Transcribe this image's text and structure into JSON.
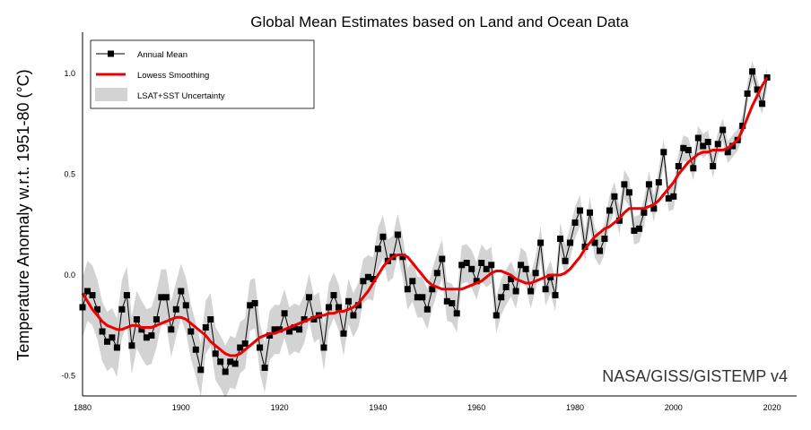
{
  "chart_data": {
    "type": "line",
    "title": "Global Mean Estimates based on Land and Ocean Data",
    "xlabel": "",
    "ylabel": "Temperature Anomaly w.r.t. 1951-80 (°C)",
    "xlim": [
      1880,
      2020
    ],
    "ylim": [
      -0.6,
      1.2
    ],
    "x_ticks": [
      1880,
      1900,
      1920,
      1940,
      1960,
      1980,
      2000,
      2020
    ],
    "y_ticks": [
      -0.5,
      0.0,
      0.5,
      1.0
    ],
    "y_tick_labels": [
      "-0.5",
      "0.0",
      "0.5",
      "1.0"
    ],
    "grid": false,
    "legend_position": "upper left",
    "legend": [
      "Annual Mean",
      "Lowess Smoothing",
      "LSAT+SST Uncertainty"
    ],
    "annotation": "NASA/GISS/GISTEMP v4",
    "colors": {
      "annual": "#000000",
      "lowess": "#ee0000",
      "uncertainty": "#d3d3d3"
    },
    "x": [
      1880,
      1881,
      1882,
      1883,
      1884,
      1885,
      1886,
      1887,
      1888,
      1889,
      1890,
      1891,
      1892,
      1893,
      1894,
      1895,
      1896,
      1897,
      1898,
      1899,
      1900,
      1901,
      1902,
      1903,
      1904,
      1905,
      1906,
      1907,
      1908,
      1909,
      1910,
      1911,
      1912,
      1913,
      1914,
      1915,
      1916,
      1917,
      1918,
      1919,
      1920,
      1921,
      1922,
      1923,
      1924,
      1925,
      1926,
      1927,
      1928,
      1929,
      1930,
      1931,
      1932,
      1933,
      1934,
      1935,
      1936,
      1937,
      1938,
      1939,
      1940,
      1941,
      1942,
      1943,
      1944,
      1945,
      1946,
      1947,
      1948,
      1949,
      1950,
      1951,
      1952,
      1953,
      1954,
      1955,
      1956,
      1957,
      1958,
      1959,
      1960,
      1961,
      1962,
      1963,
      1964,
      1965,
      1966,
      1967,
      1968,
      1969,
      1970,
      1971,
      1972,
      1973,
      1974,
      1975,
      1976,
      1977,
      1978,
      1979,
      1980,
      1981,
      1982,
      1983,
      1984,
      1985,
      1986,
      1987,
      1988,
      1989,
      1990,
      1991,
      1992,
      1993,
      1994,
      1995,
      1996,
      1997,
      1998,
      1999,
      2000,
      2001,
      2002,
      2003,
      2004,
      2005,
      2006,
      2007,
      2008,
      2009,
      2010,
      2011,
      2012,
      2013,
      2014,
      2015,
      2016,
      2017,
      2018,
      2019
    ],
    "series": [
      {
        "name": "Annual Mean",
        "values": [
          -0.16,
          -0.08,
          -0.1,
          -0.17,
          -0.28,
          -0.33,
          -0.31,
          -0.36,
          -0.17,
          -0.1,
          -0.35,
          -0.22,
          -0.27,
          -0.31,
          -0.3,
          -0.22,
          -0.11,
          -0.11,
          -0.27,
          -0.17,
          -0.08,
          -0.15,
          -0.28,
          -0.37,
          -0.47,
          -0.26,
          -0.22,
          -0.39,
          -0.43,
          -0.48,
          -0.43,
          -0.44,
          -0.36,
          -0.34,
          -0.15,
          -0.14,
          -0.36,
          -0.46,
          -0.3,
          -0.27,
          -0.27,
          -0.19,
          -0.28,
          -0.26,
          -0.27,
          -0.22,
          -0.11,
          -0.22,
          -0.2,
          -0.36,
          -0.16,
          -0.1,
          -0.16,
          -0.29,
          -0.13,
          -0.2,
          -0.15,
          -0.03,
          -0.01,
          -0.02,
          0.13,
          0.19,
          0.07,
          0.09,
          0.2,
          0.09,
          -0.07,
          -0.03,
          -0.11,
          -0.11,
          -0.17,
          -0.07,
          0.01,
          0.08,
          -0.13,
          -0.14,
          -0.19,
          0.05,
          0.06,
          0.03,
          -0.03,
          0.06,
          0.03,
          0.05,
          -0.2,
          -0.11,
          -0.06,
          -0.02,
          -0.08,
          0.05,
          0.03,
          -0.08,
          0.01,
          0.16,
          -0.07,
          -0.01,
          -0.1,
          0.18,
          0.07,
          0.16,
          0.26,
          0.32,
          0.14,
          0.31,
          0.16,
          0.12,
          0.18,
          0.32,
          0.39,
          0.27,
          0.45,
          0.41,
          0.22,
          0.23,
          0.31,
          0.45,
          0.33,
          0.46,
          0.61,
          0.38,
          0.39,
          0.54,
          0.63,
          0.62,
          0.53,
          0.68,
          0.64,
          0.66,
          0.54,
          0.65,
          0.72,
          0.61,
          0.64,
          0.67,
          0.74,
          0.9,
          1.01,
          0.92,
          0.85,
          0.98
        ]
      },
      {
        "name": "Lowess Smoothing",
        "values": [
          -0.09,
          -0.13,
          -0.17,
          -0.2,
          -0.23,
          -0.25,
          -0.26,
          -0.27,
          -0.27,
          -0.26,
          -0.25,
          -0.25,
          -0.26,
          -0.26,
          -0.26,
          -0.25,
          -0.24,
          -0.23,
          -0.22,
          -0.21,
          -0.21,
          -0.22,
          -0.24,
          -0.26,
          -0.28,
          -0.3,
          -0.33,
          -0.35,
          -0.37,
          -0.39,
          -0.4,
          -0.4,
          -0.39,
          -0.37,
          -0.35,
          -0.33,
          -0.31,
          -0.3,
          -0.29,
          -0.29,
          -0.28,
          -0.27,
          -0.26,
          -0.25,
          -0.24,
          -0.23,
          -0.22,
          -0.21,
          -0.2,
          -0.2,
          -0.19,
          -0.19,
          -0.18,
          -0.18,
          -0.17,
          -0.16,
          -0.14,
          -0.11,
          -0.08,
          -0.04,
          0.0,
          0.04,
          0.07,
          0.09,
          0.1,
          0.1,
          0.09,
          0.06,
          0.03,
          0.0,
          -0.03,
          -0.05,
          -0.06,
          -0.07,
          -0.07,
          -0.07,
          -0.07,
          -0.07,
          -0.06,
          -0.05,
          -0.04,
          -0.03,
          -0.01,
          0.01,
          0.02,
          0.02,
          0.01,
          0.0,
          -0.02,
          -0.03,
          -0.04,
          -0.04,
          -0.03,
          -0.02,
          -0.01,
          0.0,
          0.0,
          0.0,
          0.01,
          0.03,
          0.06,
          0.09,
          0.13,
          0.16,
          0.19,
          0.21,
          0.23,
          0.24,
          0.26,
          0.28,
          0.31,
          0.33,
          0.33,
          0.33,
          0.33,
          0.34,
          0.35,
          0.37,
          0.4,
          0.43,
          0.46,
          0.5,
          0.53,
          0.56,
          0.58,
          0.6,
          0.61,
          0.61,
          0.62,
          0.62,
          0.62,
          0.63,
          0.65,
          0.67,
          0.72,
          0.78,
          0.84,
          0.89,
          0.94,
          0.98
        ]
      },
      {
        "name": "LSAT+SST Uncertainty",
        "half_width_start": 0.15,
        "half_width_end": 0.05
      }
    ]
  },
  "legend": {
    "items": [
      {
        "label": "Annual Mean"
      },
      {
        "label": "Lowess Smoothing"
      },
      {
        "label": "LSAT+SST Uncertainty"
      }
    ]
  }
}
